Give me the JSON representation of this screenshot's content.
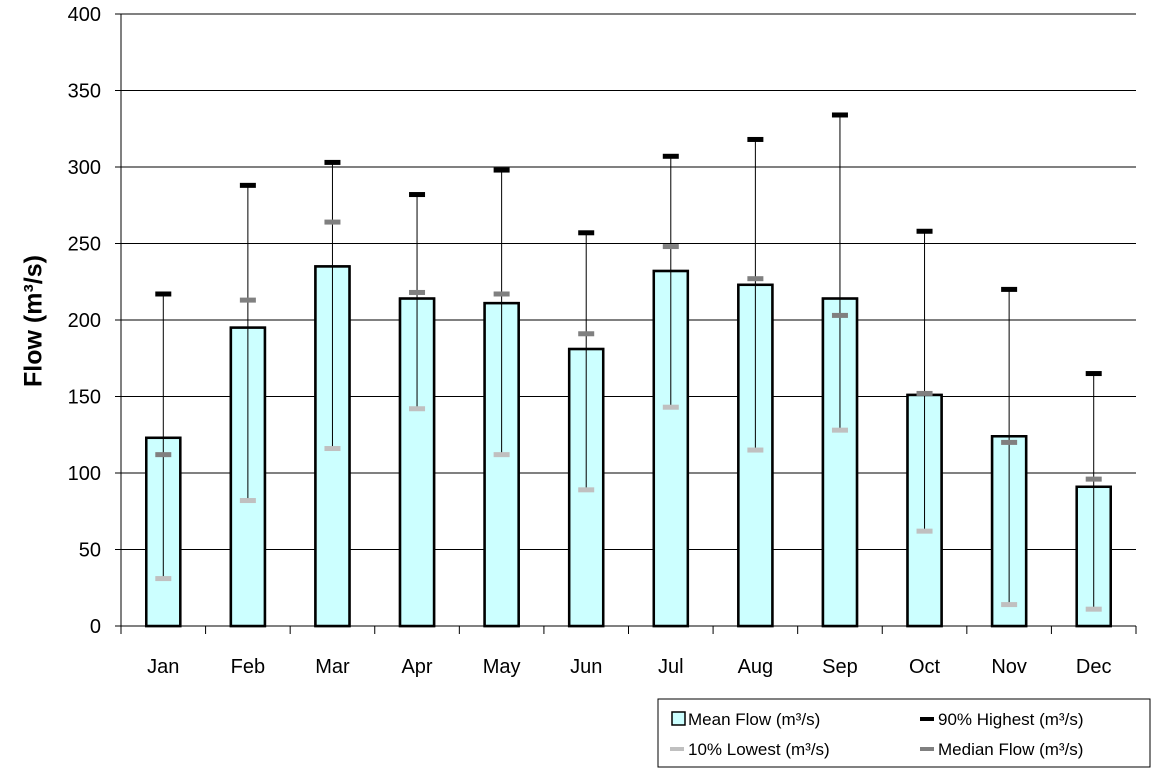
{
  "chart_data": {
    "type": "bar",
    "title": "",
    "xlabel": "",
    "ylabel": "Flow (m³/s)",
    "ylim": [
      0,
      400
    ],
    "yticks": [
      0,
      50,
      100,
      150,
      200,
      250,
      300,
      350,
      400
    ],
    "grid": true,
    "legend_position": "bottom-right",
    "categories": [
      "Jan",
      "Feb",
      "Mar",
      "Apr",
      "May",
      "Jun",
      "Jul",
      "Aug",
      "Sep",
      "Oct",
      "Nov",
      "Dec"
    ],
    "series": [
      {
        "name": "Mean Flow (m³/s)",
        "kind": "bar",
        "color": "#ccffff",
        "values": [
          123,
          195,
          235,
          214,
          211,
          181,
          232,
          223,
          214,
          151,
          124,
          91
        ]
      },
      {
        "name": "90% Highest (m³/s)",
        "kind": "marker",
        "color": "#000000",
        "values": [
          217,
          288,
          303,
          282,
          298,
          257,
          307,
          318,
          334,
          258,
          220,
          165
        ]
      },
      {
        "name": "10% Lowest (m³/s)",
        "kind": "marker",
        "color": "#c0c0c0",
        "values": [
          31,
          82,
          116,
          142,
          112,
          89,
          143,
          115,
          128,
          62,
          14,
          11
        ]
      },
      {
        "name": "Median Flow (m³/s)",
        "kind": "marker",
        "color": "#808080",
        "values": [
          112,
          213,
          264,
          218,
          217,
          191,
          248,
          227,
          203,
          152,
          120,
          96
        ]
      }
    ]
  }
}
